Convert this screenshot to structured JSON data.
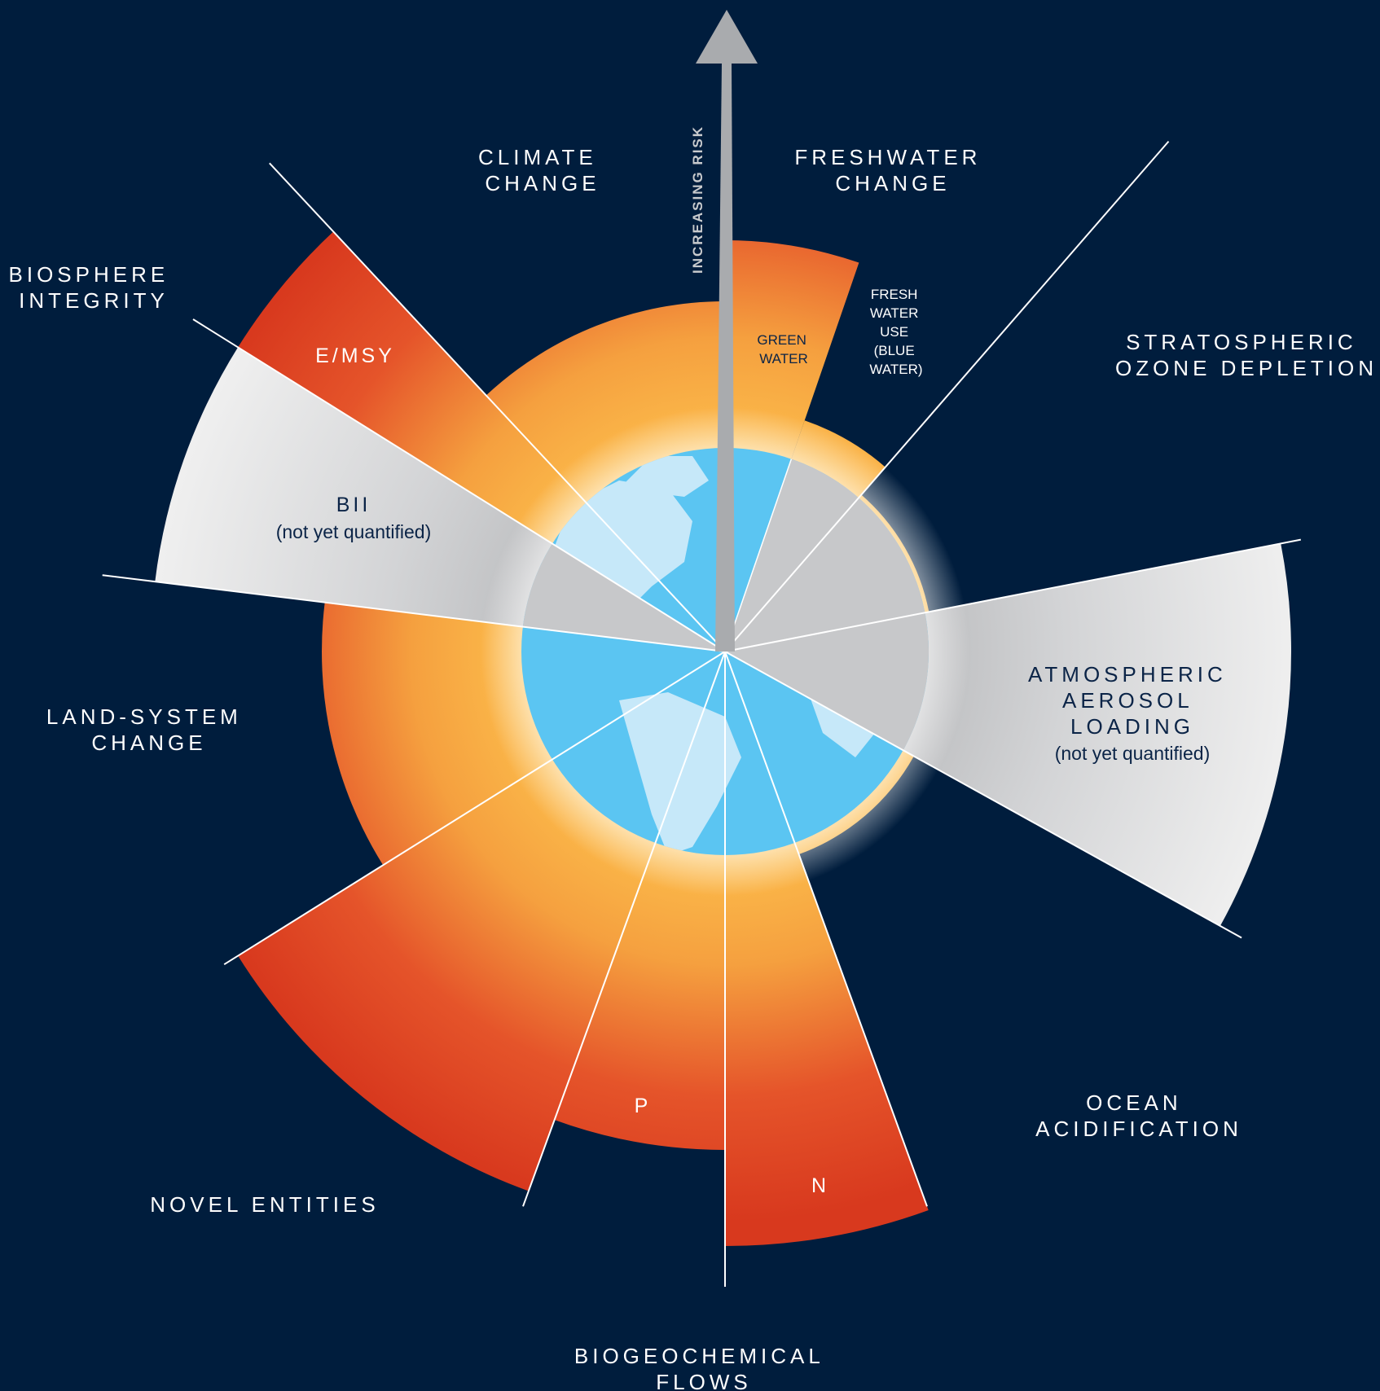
{
  "colors": {
    "background": "#001d3d",
    "safe_zone": "#fbb445",
    "high_risk": "#e04a22",
    "not_quantified": "#d4d5d7",
    "earth_ocean": "#5bc5f2",
    "earth_land": "#c6e8f9",
    "divider": "#ffffff"
  },
  "arrow": {
    "label": "INCREASING RISK"
  },
  "boundaries": {
    "climate": [
      "CLIMATE",
      "CHANGE"
    ],
    "freshwater": [
      "FRESHWATER",
      "CHANGE"
    ],
    "ozone": [
      "STRATOSPHERIC",
      "OZONE DEPLETION"
    ],
    "aerosol": [
      "ATMOSPHERIC",
      "AEROSOL",
      "LOADING"
    ],
    "aerosol_note": "(not yet quantified)",
    "ocean": [
      "OCEAN",
      "ACIDIFICATION"
    ],
    "biogeo": [
      "BIOGEOCHEMICAL",
      "FLOWS"
    ],
    "novel": "NOVEL ENTITIES",
    "land": [
      "LAND-SYSTEM",
      "CHANGE"
    ],
    "biosphere": [
      "BIOSPHERE",
      "INTEGRITY"
    ]
  },
  "sub_labels": {
    "emsy": "E/MSY",
    "bii": "BII",
    "bii_note": "(not yet quantified)",
    "green_water": [
      "GREEN",
      "WATER"
    ],
    "blue_water": [
      "FRESH",
      "WATER",
      "USE",
      "(BLUE",
      "WATER)"
    ],
    "p": "P",
    "n": "N"
  }
}
